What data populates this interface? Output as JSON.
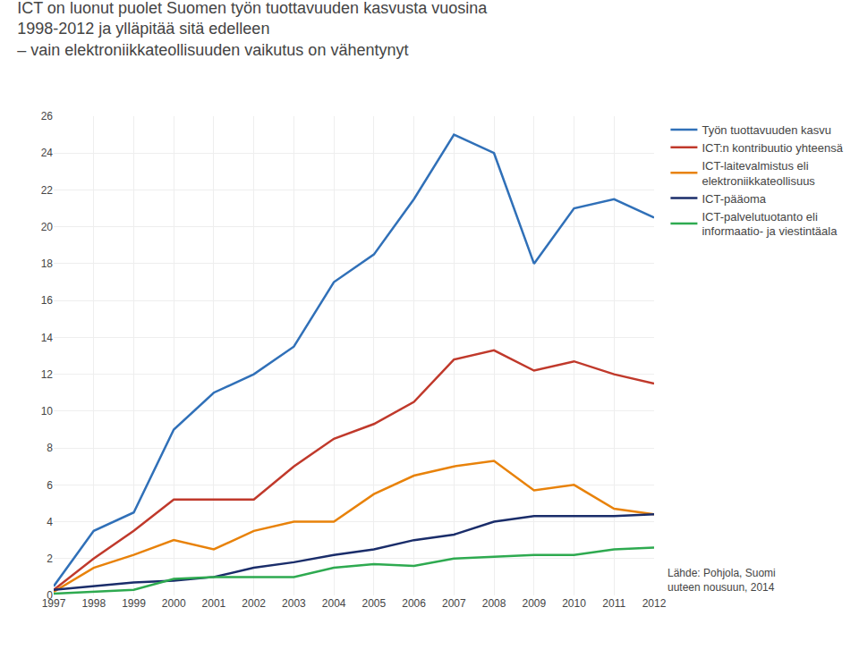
{
  "chart_data": {
    "type": "line",
    "title": "ICT on luonut puolet Suomen työn tuottavuuden kasvusta vuosina\n1998-2012 ja ylläpitää sitä edelleen\n– vain elektroniikkateollisuuden vaikutus on vähentynyt",
    "annotations": [
      "Lähde: Pohjola, Suomi\nuuteen nousuun, 2014"
    ],
    "x": [
      1997,
      1998,
      1999,
      2000,
      2001,
      2002,
      2003,
      2004,
      2005,
      2006,
      2007,
      2008,
      2009,
      2010,
      2011,
      2012
    ],
    "series": [
      {
        "name": "Työn tuottavuuden kasvu",
        "color": "#3070B8",
        "values": [
          0.5,
          3.5,
          4.5,
          9.0,
          11.0,
          12.0,
          13.5,
          17.0,
          18.5,
          21.5,
          25.0,
          24.0,
          18.0,
          21.0,
          21.5,
          20.5
        ]
      },
      {
        "name": "ICT:n kontribuutio yhteensä",
        "color": "#C0392B",
        "values": [
          0.3,
          2.0,
          3.5,
          5.2,
          5.2,
          5.2,
          7.0,
          8.5,
          9.3,
          10.5,
          12.8,
          13.3,
          12.2,
          12.7,
          12.0,
          11.5
        ]
      },
      {
        "name": "ICT-laitevalmistus eli\nelektroniikkateollisuus",
        "color": "#E8820A",
        "values": [
          0.2,
          1.5,
          2.2,
          3.0,
          2.5,
          3.5,
          4.0,
          4.0,
          5.5,
          6.5,
          7.0,
          7.3,
          5.7,
          6.0,
          4.7,
          4.4
        ]
      },
      {
        "name": "ICT-pääoma",
        "color": "#1A2D6A",
        "values": [
          0.3,
          0.5,
          0.7,
          0.8,
          1.0,
          1.5,
          1.8,
          2.2,
          2.5,
          3.0,
          3.3,
          4.0,
          4.3,
          4.3,
          4.3,
          4.4
        ]
      },
      {
        "name": "ICT-palvelutuotanto eli\ninformaatio- ja viestintäala",
        "color": "#2EAA50",
        "values": [
          0.1,
          0.2,
          0.3,
          0.9,
          1.0,
          1.0,
          1.0,
          1.5,
          1.7,
          1.6,
          2.0,
          2.1,
          2.2,
          2.2,
          2.5,
          2.6
        ]
      }
    ],
    "xlim": [
      1997,
      2012
    ],
    "xticks": [
      1997,
      1998,
      1999,
      2000,
      2001,
      2002,
      2003,
      2004,
      2005,
      2006,
      2007,
      2008,
      2009,
      2010,
      2011,
      2012
    ],
    "ylim": [
      0,
      26
    ],
    "yticks": [
      0,
      2,
      4,
      6,
      8,
      10,
      12,
      14,
      16,
      18,
      20,
      22,
      24,
      26
    ],
    "grid": true,
    "legend": "right"
  }
}
